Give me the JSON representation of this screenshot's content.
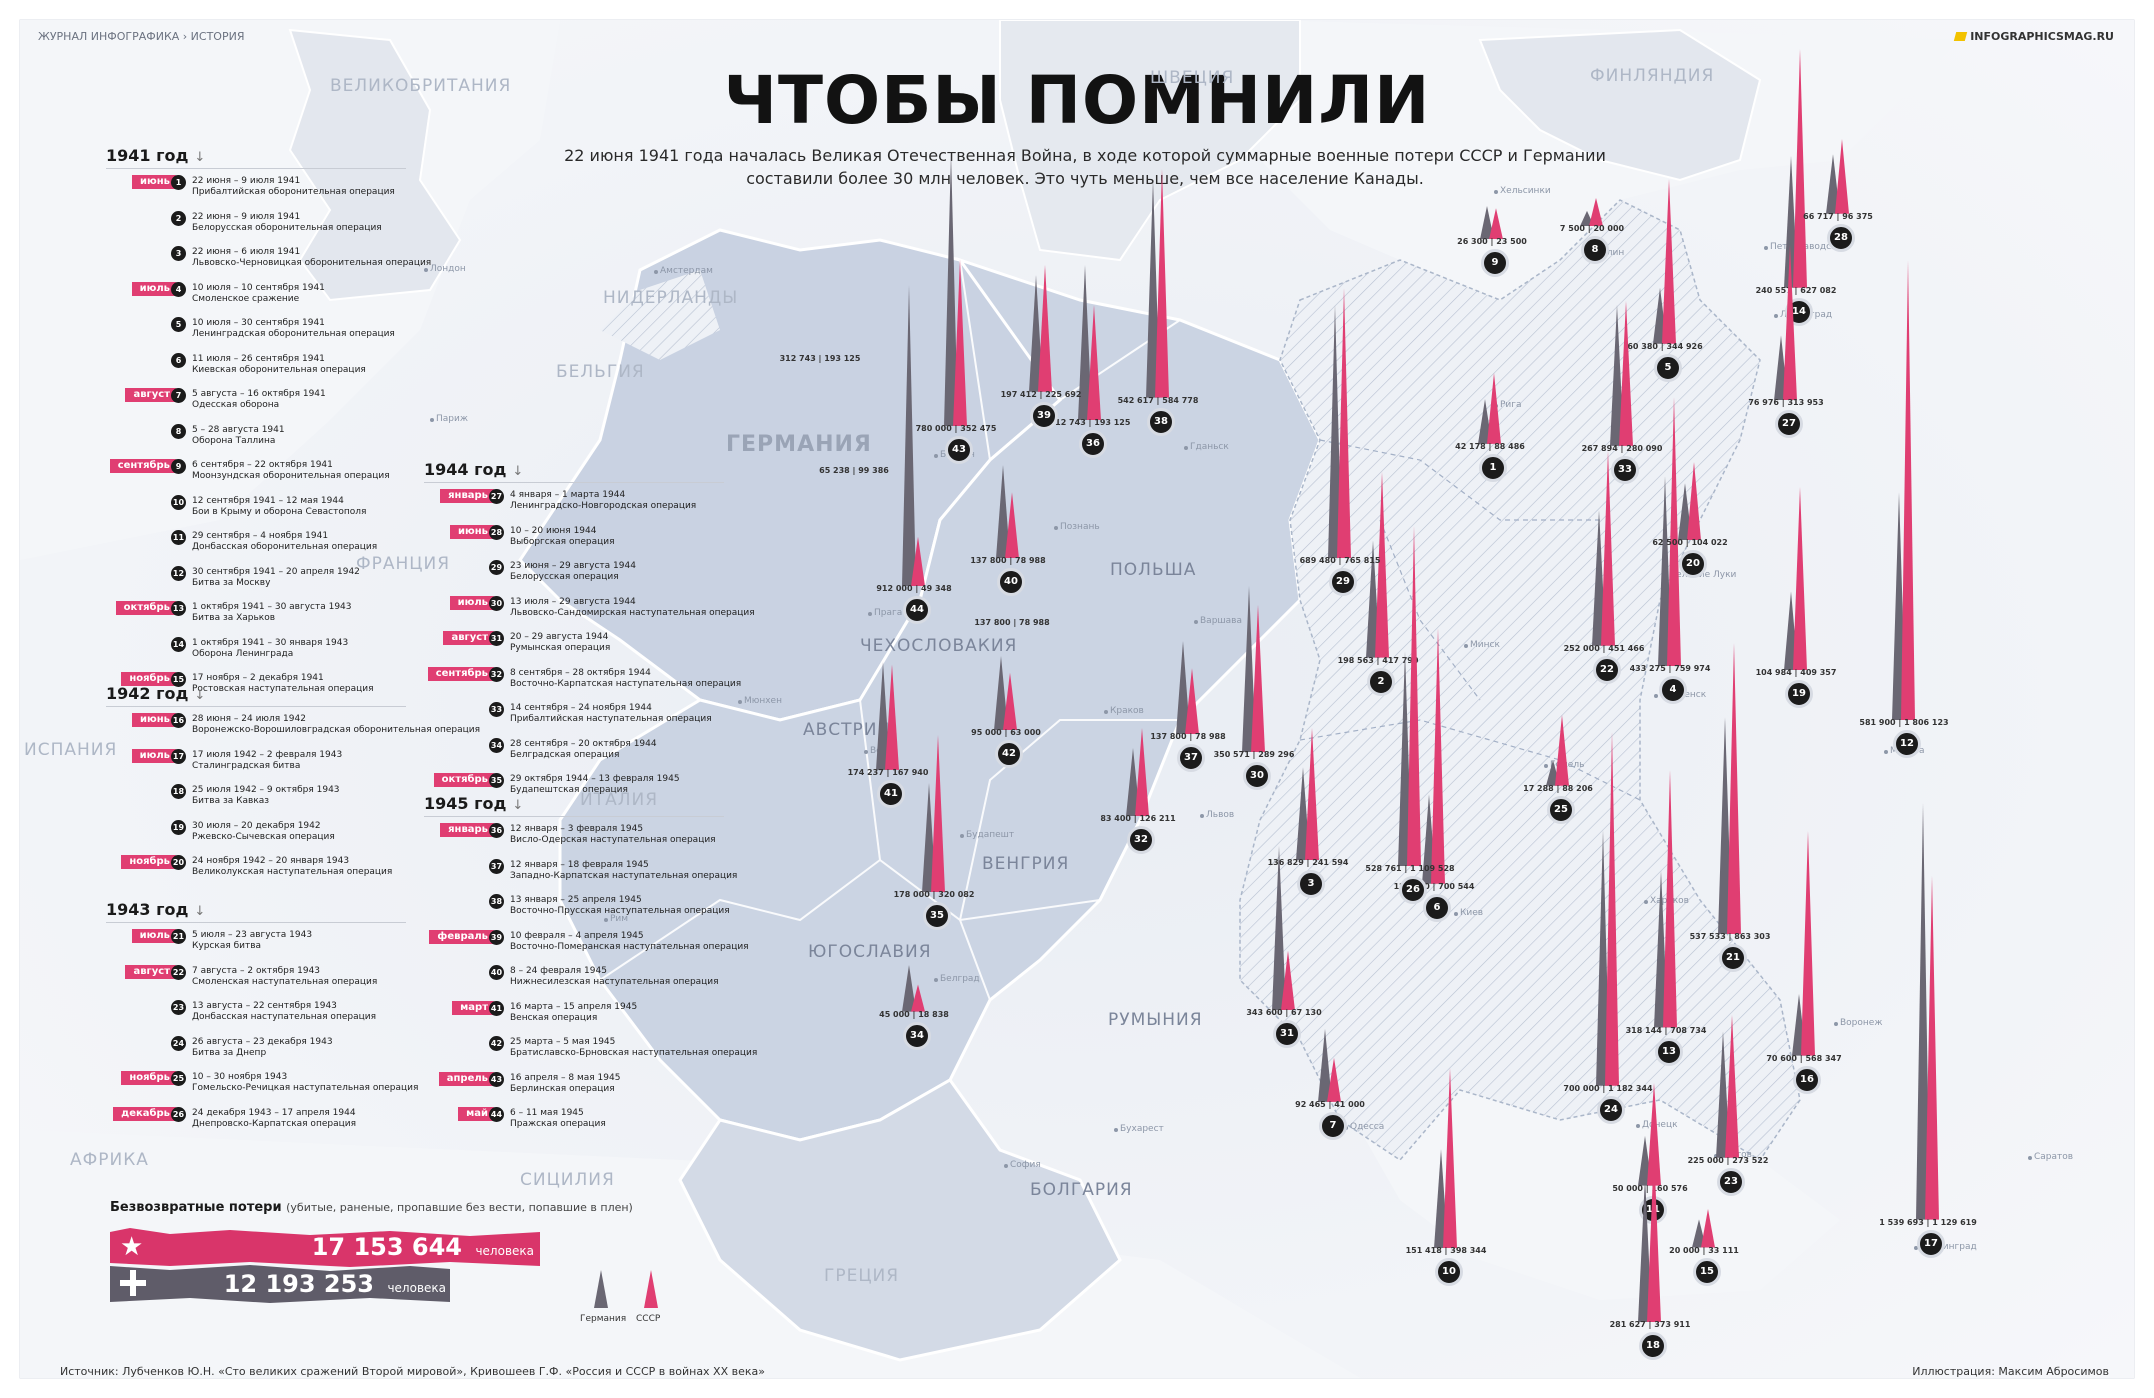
{
  "header": {
    "breadcrumb": "ЖУРНАЛ ИНФОГРАФИКА › ИСТОРИЯ",
    "site": "INFOGRAPHICSMAG.RU",
    "title": "ЧТОБЫ ПОМНИЛИ",
    "subtitle": "22 июня 1941 года началась Великая Отечественная Война, в ходе которой суммарные военные потери СССР и Германии составили более 30 млн человек. Это чуть меньше, чем все население Канады."
  },
  "colors": {
    "ussr": "#e03e72",
    "germany": "#6a6773",
    "map_land": "#e6eaf1",
    "occupied": "#c9d2e2"
  },
  "timeline": {
    "years": [
      {
        "label": "1941 год",
        "events": [
          {
            "n": "1",
            "month": "июнь",
            "date": "22 июня – 9 июля 1941",
            "name": "Прибалтийская оборонительная операция"
          },
          {
            "n": "2",
            "month": "",
            "date": "22 июня – 9 июля 1941",
            "name": "Белорусская оборонительная операция"
          },
          {
            "n": "3",
            "month": "",
            "date": "22 июня – 6 июля 1941",
            "name": "Львовско-Черновицкая оборонительная операция"
          },
          {
            "n": "4",
            "month": "июль",
            "date": "10 июля – 10 сентября 1941",
            "name": "Смоленское сражение"
          },
          {
            "n": "5",
            "month": "",
            "date": "10 июля – 30 сентября 1941",
            "name": "Ленинградская оборонительная операция"
          },
          {
            "n": "6",
            "month": "",
            "date": "11 июля – 26 сентября 1941",
            "name": "Киевская оборонительная операция"
          },
          {
            "n": "7",
            "month": "август",
            "date": "5 августа – 16 октября 1941",
            "name": "Одесская оборона"
          },
          {
            "n": "8",
            "month": "",
            "date": "5 – 28 августа 1941",
            "name": "Оборона Таллина"
          },
          {
            "n": "9",
            "month": "сентябрь",
            "date": "6 сентября – 22 октября 1941",
            "name": "Моонзундская оборонительная операция"
          },
          {
            "n": "10",
            "month": "",
            "date": "12 сентября 1941 – 12 мая 1944",
            "name": "Бои в Крыму и оборона Севастополя"
          },
          {
            "n": "11",
            "month": "",
            "date": "29 сентября – 4 ноября 1941",
            "name": "Донбасская оборонительная операция"
          },
          {
            "n": "12",
            "month": "",
            "date": "30 сентября 1941 – 20 апреля 1942",
            "name": "Битва за Москву"
          },
          {
            "n": "13",
            "month": "октябрь",
            "date": "1 октября 1941 – 30 августа 1943",
            "name": "Битва за Харьков"
          },
          {
            "n": "14",
            "month": "",
            "date": "1 октября 1941 – 30 января 1943",
            "name": "Оборона Ленинграда"
          },
          {
            "n": "15",
            "month": "ноябрь",
            "date": "17 ноября – 2 декабря 1941",
            "name": "Ростовская наступательная операция"
          }
        ]
      },
      {
        "label": "1942 год",
        "events": [
          {
            "n": "16",
            "month": "июнь",
            "date": "28 июня – 24 июля 1942",
            "name": "Воронежско-Ворошиловградская оборонительная операция"
          },
          {
            "n": "17",
            "month": "июль",
            "date": "17 июля 1942 – 2 февраля 1943",
            "name": "Сталинградская битва"
          },
          {
            "n": "18",
            "month": "",
            "date": "25 июля 1942 – 9 октября 1943",
            "name": "Битва за Кавказ"
          },
          {
            "n": "19",
            "month": "",
            "date": "30 июля – 20 декабря 1942",
            "name": "Ржевско-Сычевская операция"
          },
          {
            "n": "20",
            "month": "ноябрь",
            "date": "24 ноября 1942 – 20 января 1943",
            "name": "Великолукская наступательная операция"
          }
        ]
      },
      {
        "label": "1943 год",
        "events": [
          {
            "n": "21",
            "month": "июль",
            "date": "5 июля – 23 августа 1943",
            "name": "Курская битва"
          },
          {
            "n": "22",
            "month": "август",
            "date": "7 августа – 2 октября 1943",
            "name": "Смоленская наступательная операция"
          },
          {
            "n": "23",
            "month": "",
            "date": "13 августа – 22 сентября 1943",
            "name": "Донбасская наступательная операция"
          },
          {
            "n": "24",
            "month": "",
            "date": "26 августа – 23 декабря 1943",
            "name": "Битва за Днепр"
          },
          {
            "n": "25",
            "month": "ноябрь",
            "date": "10 – 30 ноября 1943",
            "name": "Гомельско-Речицкая наступательная операция"
          },
          {
            "n": "26",
            "month": "декабрь",
            "date": "24 декабря 1943 – 17 апреля 1944",
            "name": "Днепровско-Карпатская операция"
          }
        ]
      },
      {
        "label": "1944 год",
        "events": [
          {
            "n": "27",
            "month": "январь",
            "date": "4 января – 1 марта 1944",
            "name": "Ленинградско-Новгородская операция"
          },
          {
            "n": "28",
            "month": "июнь",
            "date": "10 – 20 июня 1944",
            "name": "Выборгская операция"
          },
          {
            "n": "29",
            "month": "",
            "date": "23 июня – 29 августа 1944",
            "name": "Белорусская операция"
          },
          {
            "n": "30",
            "month": "июль",
            "date": "13 июля – 29 августа 1944",
            "name": "Львовско-Сандомирская наступательная операция"
          },
          {
            "n": "31",
            "month": "август",
            "date": "20 – 29 августа 1944",
            "name": "Румынская операция"
          },
          {
            "n": "32",
            "month": "сентябрь",
            "date": "8 сентября – 28 октября 1944",
            "name": "Восточно-Карпатская наступательная операция"
          },
          {
            "n": "33",
            "month": "",
            "date": "14 сентября – 24 ноября 1944",
            "name": "Прибалтийская наступательная операция"
          },
          {
            "n": "34",
            "month": "",
            "date": "28 сентября – 20 октября 1944",
            "name": "Белградская операция"
          },
          {
            "n": "35",
            "month": "октябрь",
            "date": "29 октября 1944 – 13 февраля 1945",
            "name": "Будапештская операция"
          }
        ]
      },
      {
        "label": "1945 год",
        "events": [
          {
            "n": "36",
            "month": "январь",
            "date": "12 января – 3 февраля 1945",
            "name": "Висло-Одерская наступательная операция"
          },
          {
            "n": "37",
            "month": "",
            "date": "12 января – 18 февраля 1945",
            "name": "Западно-Карпатская наступательная операция"
          },
          {
            "n": "38",
            "month": "",
            "date": "13 января – 25 апреля 1945",
            "name": "Восточно-Прусская наступательная операция"
          },
          {
            "n": "39",
            "month": "февраль",
            "date": "10 февраля – 4 апреля 1945",
            "name": "Восточно-Померанская наступательная операция"
          },
          {
            "n": "40",
            "month": "",
            "date": "8 – 24 февраля 1945",
            "name": "Нижнесилезская наступательная операция"
          },
          {
            "n": "41",
            "month": "март",
            "date": "16 марта – 15 апреля 1945",
            "name": "Венская операция"
          },
          {
            "n": "42",
            "month": "",
            "date": "25 марта – 5 мая 1945",
            "name": "Братиславско-Брновская наступательная операция"
          },
          {
            "n": "43",
            "month": "апрель",
            "date": "16 апреля – 8 мая 1945",
            "name": "Берлинская операция"
          },
          {
            "n": "44",
            "month": "май",
            "date": "6 – 11 мая 1945",
            "name": "Пражская операция"
          }
        ]
      }
    ]
  },
  "map": {
    "countries": [
      "ВЕЛИКОБРИТАНИЯ",
      "ШВЕЦИЯ",
      "ФИНЛЯНДИЯ",
      "НИДЕРЛАНДЫ",
      "БЕЛЬГИЯ",
      "ГЕРМАНИЯ",
      "ФРАНЦИЯ",
      "ПОЛЬША",
      "ЧЕХОСЛОВАКИЯ",
      "АВСТРИЯ",
      "ИСПАНИЯ",
      "ИТАЛИЯ",
      "ВЕНГРИЯ",
      "ЮГОСЛАВИЯ",
      "РУМЫНИЯ",
      "БОЛГАРИЯ",
      "ГРЕЦИЯ",
      "АФРИКА",
      "СИЦИЛИЯ"
    ],
    "cities": [
      "Хельсинки",
      "Петрозаводск",
      "Амстердам",
      "Таллин",
      "Рига",
      "Ленинград",
      "Лондон",
      "Париж",
      "Берлин",
      "Гданьск",
      "Познань",
      "Варшава",
      "Прага",
      "Краков",
      "Вена",
      "Будапешт",
      "Белград",
      "Бухарест",
      "София",
      "Львов",
      "Киев",
      "Одесса",
      "Харьков",
      "Донецк",
      "Ростов",
      "Воронеж",
      "Москва",
      "Саратов",
      "Сталинград",
      "Смоленск",
      "Великие Луки",
      "Гомель",
      "Минск",
      "Мюнхен",
      "Рим"
    ],
    "battles": [
      {
        "n": "1",
        "germany": 42178,
        "ussr": 88486,
        "label": "42 178 | 88 486"
      },
      {
        "n": "2",
        "germany": 198563,
        "ussr": 417790,
        "label": "198 563 | 417 790"
      },
      {
        "n": "3",
        "germany": 136829,
        "ussr": 241594,
        "label": "136 829 | 241 594"
      },
      {
        "n": "4",
        "germany": 433275,
        "ussr": 759974,
        "label": "433 275 | 759 974"
      },
      {
        "n": "5",
        "germany": 60380,
        "ussr": 344926,
        "label": "60 380 | 344 926"
      },
      {
        "n": "6",
        "germany": 128670,
        "ussr": 700544,
        "label": "128 670 | 700 544"
      },
      {
        "n": "7",
        "germany": 92465,
        "ussr": 41000,
        "label": "92 465 | 41 000"
      },
      {
        "n": "8",
        "germany": 7500,
        "ussr": 20000,
        "label": "7 500 | 20 000"
      },
      {
        "n": "9",
        "germany": 26300,
        "ussr": 23500,
        "label": "26 300 | 23 500"
      },
      {
        "n": "10",
        "germany": 151418,
        "ussr": 398344,
        "label": "151 418 | 398 344"
      },
      {
        "n": "11",
        "germany": 50000,
        "ussr": 160576,
        "label": "50 000 | 160 576"
      },
      {
        "n": "12",
        "germany": 581900,
        "ussr": 1806123,
        "label": "581 900 | 1 806 123"
      },
      {
        "n": "13",
        "germany": 318144,
        "ussr": 708734,
        "label": "318 144 | 708 734"
      },
      {
        "n": "14",
        "germany": 240557,
        "ussr": 627082,
        "label": "240 557 | 627 082"
      },
      {
        "n": "15",
        "germany": 20000,
        "ussr": 33111,
        "label": "20 000 | 33 111"
      },
      {
        "n": "16",
        "germany": 70600,
        "ussr": 568347,
        "label": "70 600 | 568 347"
      },
      {
        "n": "17",
        "germany": 1539693,
        "ussr": 1129619,
        "label": "1 539 693 | 1 129 619"
      },
      {
        "n": "18",
        "germany": 281627,
        "ussr": 373911,
        "label": "281 627 | 373 911"
      },
      {
        "n": "19",
        "germany": 104984,
        "ussr": 409357,
        "label": "104 984 | 409 357"
      },
      {
        "n": "20",
        "germany": 62500,
        "ussr": 104022,
        "label": "62 500 | 104 022"
      },
      {
        "n": "21",
        "germany": 537533,
        "ussr": 863303,
        "label": "537 533 | 863 303"
      },
      {
        "n": "22",
        "germany": 252000,
        "ussr": 451466,
        "label": "252 000 | 451 466"
      },
      {
        "n": "23",
        "germany": 225000,
        "ussr": 273522,
        "label": "225 000 | 273 522"
      },
      {
        "n": "24",
        "germany": 700000,
        "ussr": 1182344,
        "label": "700 000 | 1 182 344"
      },
      {
        "n": "25",
        "germany": 17288,
        "ussr": 88206,
        "label": "17 288 | 88 206"
      },
      {
        "n": "26",
        "germany": 528761,
        "ussr": 1109528,
        "label": "528 761 | 1 109 528"
      },
      {
        "n": "27",
        "germany": 76976,
        "ussr": 313953,
        "label": "76 976 | 313 953"
      },
      {
        "n": "28",
        "germany": 66717,
        "ussr": 96375,
        "label": "66 717 | 96 375"
      },
      {
        "n": "29",
        "germany": 689480,
        "ussr": 765815,
        "label": "689 480 | 765 815"
      },
      {
        "n": "30",
        "germany": 350571,
        "ussr": 289296,
        "label": "350 571 | 289 296"
      },
      {
        "n": "31",
        "germany": 343600,
        "ussr": 67130,
        "label": "343 600 | 67 130"
      },
      {
        "n": "32",
        "germany": 83400,
        "ussr": 126211,
        "label": "83 400 | 126 211"
      },
      {
        "n": "33",
        "germany": 267894,
        "ussr": 280090,
        "label": "267 894 | 280 090"
      },
      {
        "n": "34",
        "germany": 45000,
        "ussr": 18838,
        "label": "45 000 | 18 838"
      },
      {
        "n": "35",
        "germany": 178000,
        "ussr": 320082,
        "label": "178 000 | 320 082"
      },
      {
        "n": "36",
        "germany": 312743,
        "ussr": 193125,
        "label": "312 743 | 193 125"
      },
      {
        "n": "37",
        "germany": 137800,
        "ussr": 78988,
        "label": "137 800 | 78 988"
      },
      {
        "n": "38",
        "germany": 542617,
        "ussr": 584778,
        "label": "542 617 | 584 778"
      },
      {
        "n": "39",
        "germany": 197412,
        "ussr": 225692,
        "label": "197 412 | 225 692"
      },
      {
        "n": "40",
        "germany": 137800,
        "ussr": 78988,
        "label": "137 800 | 78 988"
      },
      {
        "n": "41",
        "germany": 174237,
        "ussr": 167940,
        "label": "174 237 | 167 940"
      },
      {
        "n": "42",
        "germany": 95000,
        "ussr": 63000,
        "label": "95 000 | 63 000"
      },
      {
        "n": "43",
        "germany": 780000,
        "ussr": 352475,
        "label": "780 000 | 352 475"
      },
      {
        "n": "44",
        "germany": 912000,
        "ussr": 49348,
        "label": "912 000 | 49 348"
      }
    ],
    "extra_labels": [
      "312 743 | 193 125",
      "65 238 | 99 386",
      "137 800 | 78 988"
    ]
  },
  "losses": {
    "title": "Безвозвратные потери",
    "note": "(убитые, раненые, пропавшие без вести, попавшие в плен)",
    "ussr_value": "17 153 644",
    "germany_value": "12 193 253",
    "unit": "человека"
  },
  "legend": {
    "germany": "Германия",
    "ussr": "СССР"
  },
  "footer": {
    "source": "Источник: Лубченков Ю.Н. «Сто великих сражений Второй мировой», Кривошеев Г.Ф. «Россия и СССР в войнах XX века»",
    "credit": "Иллюстрация: Максим Абросимов"
  }
}
